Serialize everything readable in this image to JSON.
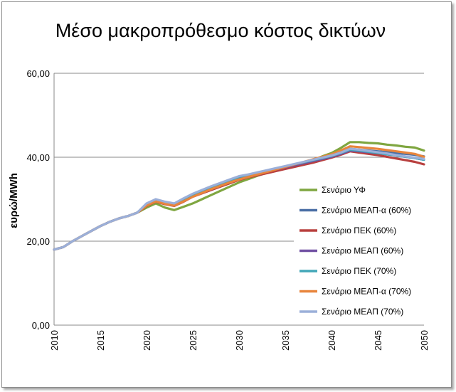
{
  "chart_data": {
    "type": "line",
    "title": "Μέσο μακροπρόθεσμο κόστος δικτύων",
    "xlabel": "",
    "ylabel": "ευρώ/MWh",
    "ylim": [
      0,
      60
    ],
    "xlim": [
      2010,
      2050
    ],
    "y_ticks": [
      "0,00",
      "20,00",
      "40,00",
      "60,00"
    ],
    "x_ticks": [
      "2010",
      "2015",
      "2020",
      "2025",
      "2030",
      "2035",
      "2040",
      "2045",
      "2050"
    ],
    "grid": true,
    "legend_position": "right",
    "x": [
      2010,
      2011,
      2012,
      2013,
      2014,
      2015,
      2016,
      2017,
      2018,
      2019,
      2020,
      2021,
      2022,
      2023,
      2024,
      2025,
      2026,
      2027,
      2028,
      2029,
      2030,
      2031,
      2032,
      2033,
      2034,
      2035,
      2036,
      2037,
      2038,
      2039,
      2040,
      2041,
      2042,
      2043,
      2044,
      2045,
      2046,
      2047,
      2048,
      2049,
      2050
    ],
    "series": [
      {
        "name": "Σενάριο ΥΦ",
        "color": "#7fa640",
        "values": [
          18.0,
          18.6,
          20.0,
          21.2,
          22.4,
          23.6,
          24.6,
          25.4,
          26.0,
          26.8,
          28.0,
          29.0,
          28.0,
          27.4,
          28.2,
          29.0,
          30.0,
          31.0,
          32.0,
          33.0,
          34.0,
          34.8,
          35.6,
          36.3,
          37.0,
          37.5,
          38.0,
          38.6,
          39.3,
          40.2,
          41.0,
          42.2,
          43.6,
          43.6,
          43.4,
          43.3,
          43.0,
          42.8,
          42.5,
          42.3,
          41.6
        ]
      },
      {
        "name": "Σενάριο ΜΕΑΠ-α (60%)",
        "color": "#4a6fa5",
        "values": [
          18.0,
          18.6,
          20.0,
          21.2,
          22.4,
          23.6,
          24.6,
          25.4,
          26.0,
          26.8,
          28.6,
          29.6,
          29.0,
          28.6,
          29.6,
          30.8,
          31.6,
          32.4,
          33.2,
          34.0,
          34.8,
          35.4,
          35.9,
          36.4,
          36.9,
          37.4,
          37.9,
          38.4,
          38.9,
          39.5,
          40.1,
          41.0,
          42.0,
          41.8,
          41.6,
          41.4,
          41.2,
          41.0,
          40.8,
          40.6,
          40.2
        ]
      },
      {
        "name": "Σενάριο ΠΕΚ (60%)",
        "color": "#b8403f",
        "values": [
          18.0,
          18.6,
          20.0,
          21.2,
          22.4,
          23.6,
          24.6,
          25.4,
          26.0,
          26.8,
          28.4,
          29.4,
          28.8,
          28.4,
          29.4,
          30.6,
          31.4,
          32.2,
          33.0,
          33.8,
          34.6,
          35.2,
          35.7,
          36.2,
          36.7,
          37.2,
          37.7,
          38.2,
          38.7,
          39.3,
          39.9,
          40.6,
          41.4,
          41.1,
          40.8,
          40.5,
          40.1,
          39.7,
          39.3,
          38.9,
          38.3
        ]
      },
      {
        "name": "Σενάριο ΜΕΑΠ (60%)",
        "color": "#7151a3",
        "values": [
          18.0,
          18.6,
          20.0,
          21.2,
          22.4,
          23.6,
          24.6,
          25.4,
          26.0,
          26.8,
          28.8,
          29.8,
          29.2,
          28.8,
          29.9,
          31.0,
          31.9,
          32.7,
          33.5,
          34.3,
          35.1,
          35.6,
          36.1,
          36.6,
          37.1,
          37.6,
          38.1,
          38.6,
          39.1,
          39.6,
          40.1,
          40.8,
          41.6,
          41.4,
          41.2,
          41.0,
          40.7,
          40.4,
          40.1,
          39.8,
          39.4
        ]
      },
      {
        "name": "Σενάριο ΠΕΚ (70%)",
        "color": "#43a7b8",
        "values": [
          18.0,
          18.6,
          20.0,
          21.2,
          22.4,
          23.6,
          24.6,
          25.4,
          26.0,
          26.8,
          28.9,
          29.9,
          29.3,
          28.9,
          30.0,
          31.1,
          32.0,
          32.9,
          33.7,
          34.5,
          35.3,
          35.8,
          36.3,
          36.8,
          37.3,
          37.8,
          38.3,
          38.8,
          39.3,
          39.8,
          40.3,
          41.0,
          41.8,
          41.6,
          41.3,
          41.0,
          40.7,
          40.4,
          40.1,
          39.8,
          39.4
        ]
      },
      {
        "name": "Σενάριο ΜΕΑΠ-α (70%)",
        "color": "#e8853c",
        "values": [
          18.0,
          18.6,
          20.0,
          21.2,
          22.4,
          23.6,
          24.6,
          25.4,
          26.0,
          26.8,
          28.5,
          29.5,
          28.9,
          28.5,
          29.5,
          30.6,
          31.5,
          32.4,
          33.2,
          34.0,
          34.7,
          35.3,
          35.9,
          36.5,
          37.1,
          37.7,
          38.3,
          38.9,
          39.5,
          40.1,
          40.7,
          41.6,
          42.6,
          42.4,
          42.2,
          42.0,
          41.7,
          41.4,
          41.1,
          40.8,
          40.1
        ]
      },
      {
        "name": "Σενάριο ΜΕΑΠ (70%)",
        "color": "#9bafd9",
        "values": [
          18.0,
          18.6,
          20.0,
          21.2,
          22.4,
          23.6,
          24.6,
          25.4,
          26.0,
          26.8,
          29.0,
          30.0,
          29.4,
          29.0,
          30.2,
          31.3,
          32.2,
          33.1,
          33.9,
          34.7,
          35.5,
          35.9,
          36.4,
          36.9,
          37.4,
          37.9,
          38.4,
          38.9,
          39.4,
          39.9,
          40.4,
          41.1,
          42.0,
          41.8,
          41.5,
          41.2,
          40.9,
          40.5,
          40.2,
          39.9,
          39.6
        ]
      }
    ]
  }
}
